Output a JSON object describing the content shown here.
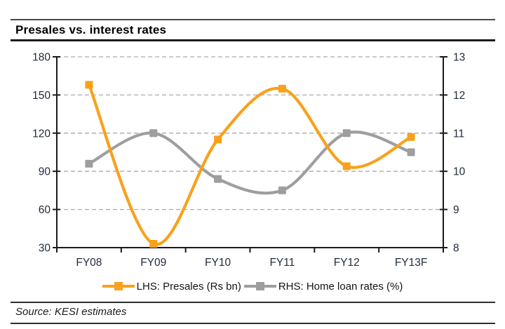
{
  "title": "Presales vs. interest rates",
  "source": "Source: KESI estimates",
  "legend": [
    {
      "label": "LHS: Presales (Rs bn)",
      "color": "#F9A11B"
    },
    {
      "label": "RHS: Home loan rates (%)",
      "color": "#9E9E9E"
    }
  ],
  "colors": {
    "orange_series": "#F9A11B",
    "gray_series": "#9E9E9E",
    "gridline": "#ababab",
    "axis": "#1a1a1a",
    "tick_text": "#222c3c"
  },
  "chart_data": {
    "type": "line",
    "title": "Presales vs. interest rates",
    "categories": [
      "FY08",
      "FY09",
      "FY10",
      "FY11",
      "FY12",
      "FY13F"
    ],
    "series": [
      {
        "name": "LHS: Presales (Rs bn)",
        "axis": "left",
        "color": "#F9A11B",
        "marker": "square",
        "values": [
          158,
          33,
          115,
          155,
          94,
          117
        ]
      },
      {
        "name": "RHS: Home loan rates (%)",
        "axis": "right",
        "color": "#9E9E9E",
        "marker": "square",
        "values": [
          10.2,
          11.0,
          9.8,
          9.5,
          11.0,
          10.5
        ]
      }
    ],
    "left_axis": {
      "min": 30,
      "max": 180,
      "step": 30,
      "ticks": [
        180,
        150,
        120,
        90,
        60,
        30
      ]
    },
    "right_axis": {
      "min": 8,
      "max": 13,
      "step": 1,
      "ticks": [
        13,
        12,
        11,
        10,
        9,
        8
      ]
    },
    "grid": "horizontal-dashed",
    "smooth": true,
    "legend_position": "bottom"
  }
}
